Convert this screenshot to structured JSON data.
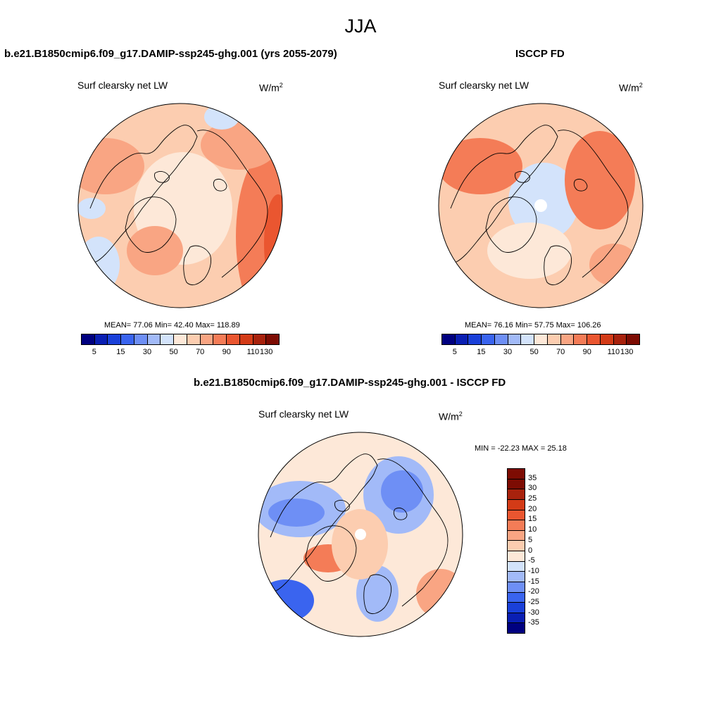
{
  "figure": {
    "season": "JJA"
  },
  "panels": [
    {
      "case_title": "b.e21.B1850cmip6.f09_g17.DAMIP-ssp245-ghg.001 (yrs 2055-2079)",
      "variable_label": "Surf clearsky net LW",
      "units_base": "W/m",
      "units_exp": "2",
      "stats": "MEAN= 77.06 Min= 42.40 Max= 118.89",
      "mean": 77.06,
      "min": 42.4,
      "max": 118.89,
      "field_style": "model"
    },
    {
      "case_title": "ISCCP FD",
      "variable_label": "Surf clearsky net LW",
      "units_base": "W/m",
      "units_exp": "2",
      "stats": "MEAN= 76.16 Min= 57.75 Max= 106.26",
      "mean": 76.16,
      "min": 57.75,
      "max": 106.26,
      "field_style": "obs"
    },
    {
      "case_title": "b.e21.B1850cmip6.f09_g17.DAMIP-ssp245-ghg.001 - ISCCP FD",
      "variable_label": "Surf clearsky net LW",
      "units_base": "W/m",
      "units_exp": "2",
      "stats": "MIN = -22.23 MAX = 25.18",
      "min": -22.23,
      "max": 25.18,
      "field_style": "diff"
    }
  ],
  "colorbar_abs": {
    "colors": [
      "#000080",
      "#0a1fb3",
      "#1a40d9",
      "#3a64ef",
      "#6e8ff5",
      "#a2baf8",
      "#d3e3fb",
      "#fde8d8",
      "#fccdb0",
      "#f9a583",
      "#f47c57",
      "#ea5630",
      "#d33b17",
      "#a8220d",
      "#7d0c03"
    ],
    "tick_labels": [
      "5",
      "15",
      "30",
      "50",
      "70",
      "90",
      "110",
      "130"
    ]
  },
  "colorbar_diff": {
    "colors": [
      "#7d0c03",
      "#a8220d",
      "#d33b17",
      "#ea5630",
      "#f47c57",
      "#f9a583",
      "#fccdb0",
      "#fde8d8",
      "#d3e3fb",
      "#a2baf8",
      "#6e8ff5",
      "#3a64ef",
      "#1a40d9",
      "#0a1fb3",
      "#000080"
    ],
    "tick_labels": [
      "35",
      "30",
      "25",
      "20",
      "15",
      "10",
      "5",
      "0",
      "-5",
      "-10",
      "-15",
      "-20",
      "-25",
      "-30",
      "-35"
    ]
  }
}
